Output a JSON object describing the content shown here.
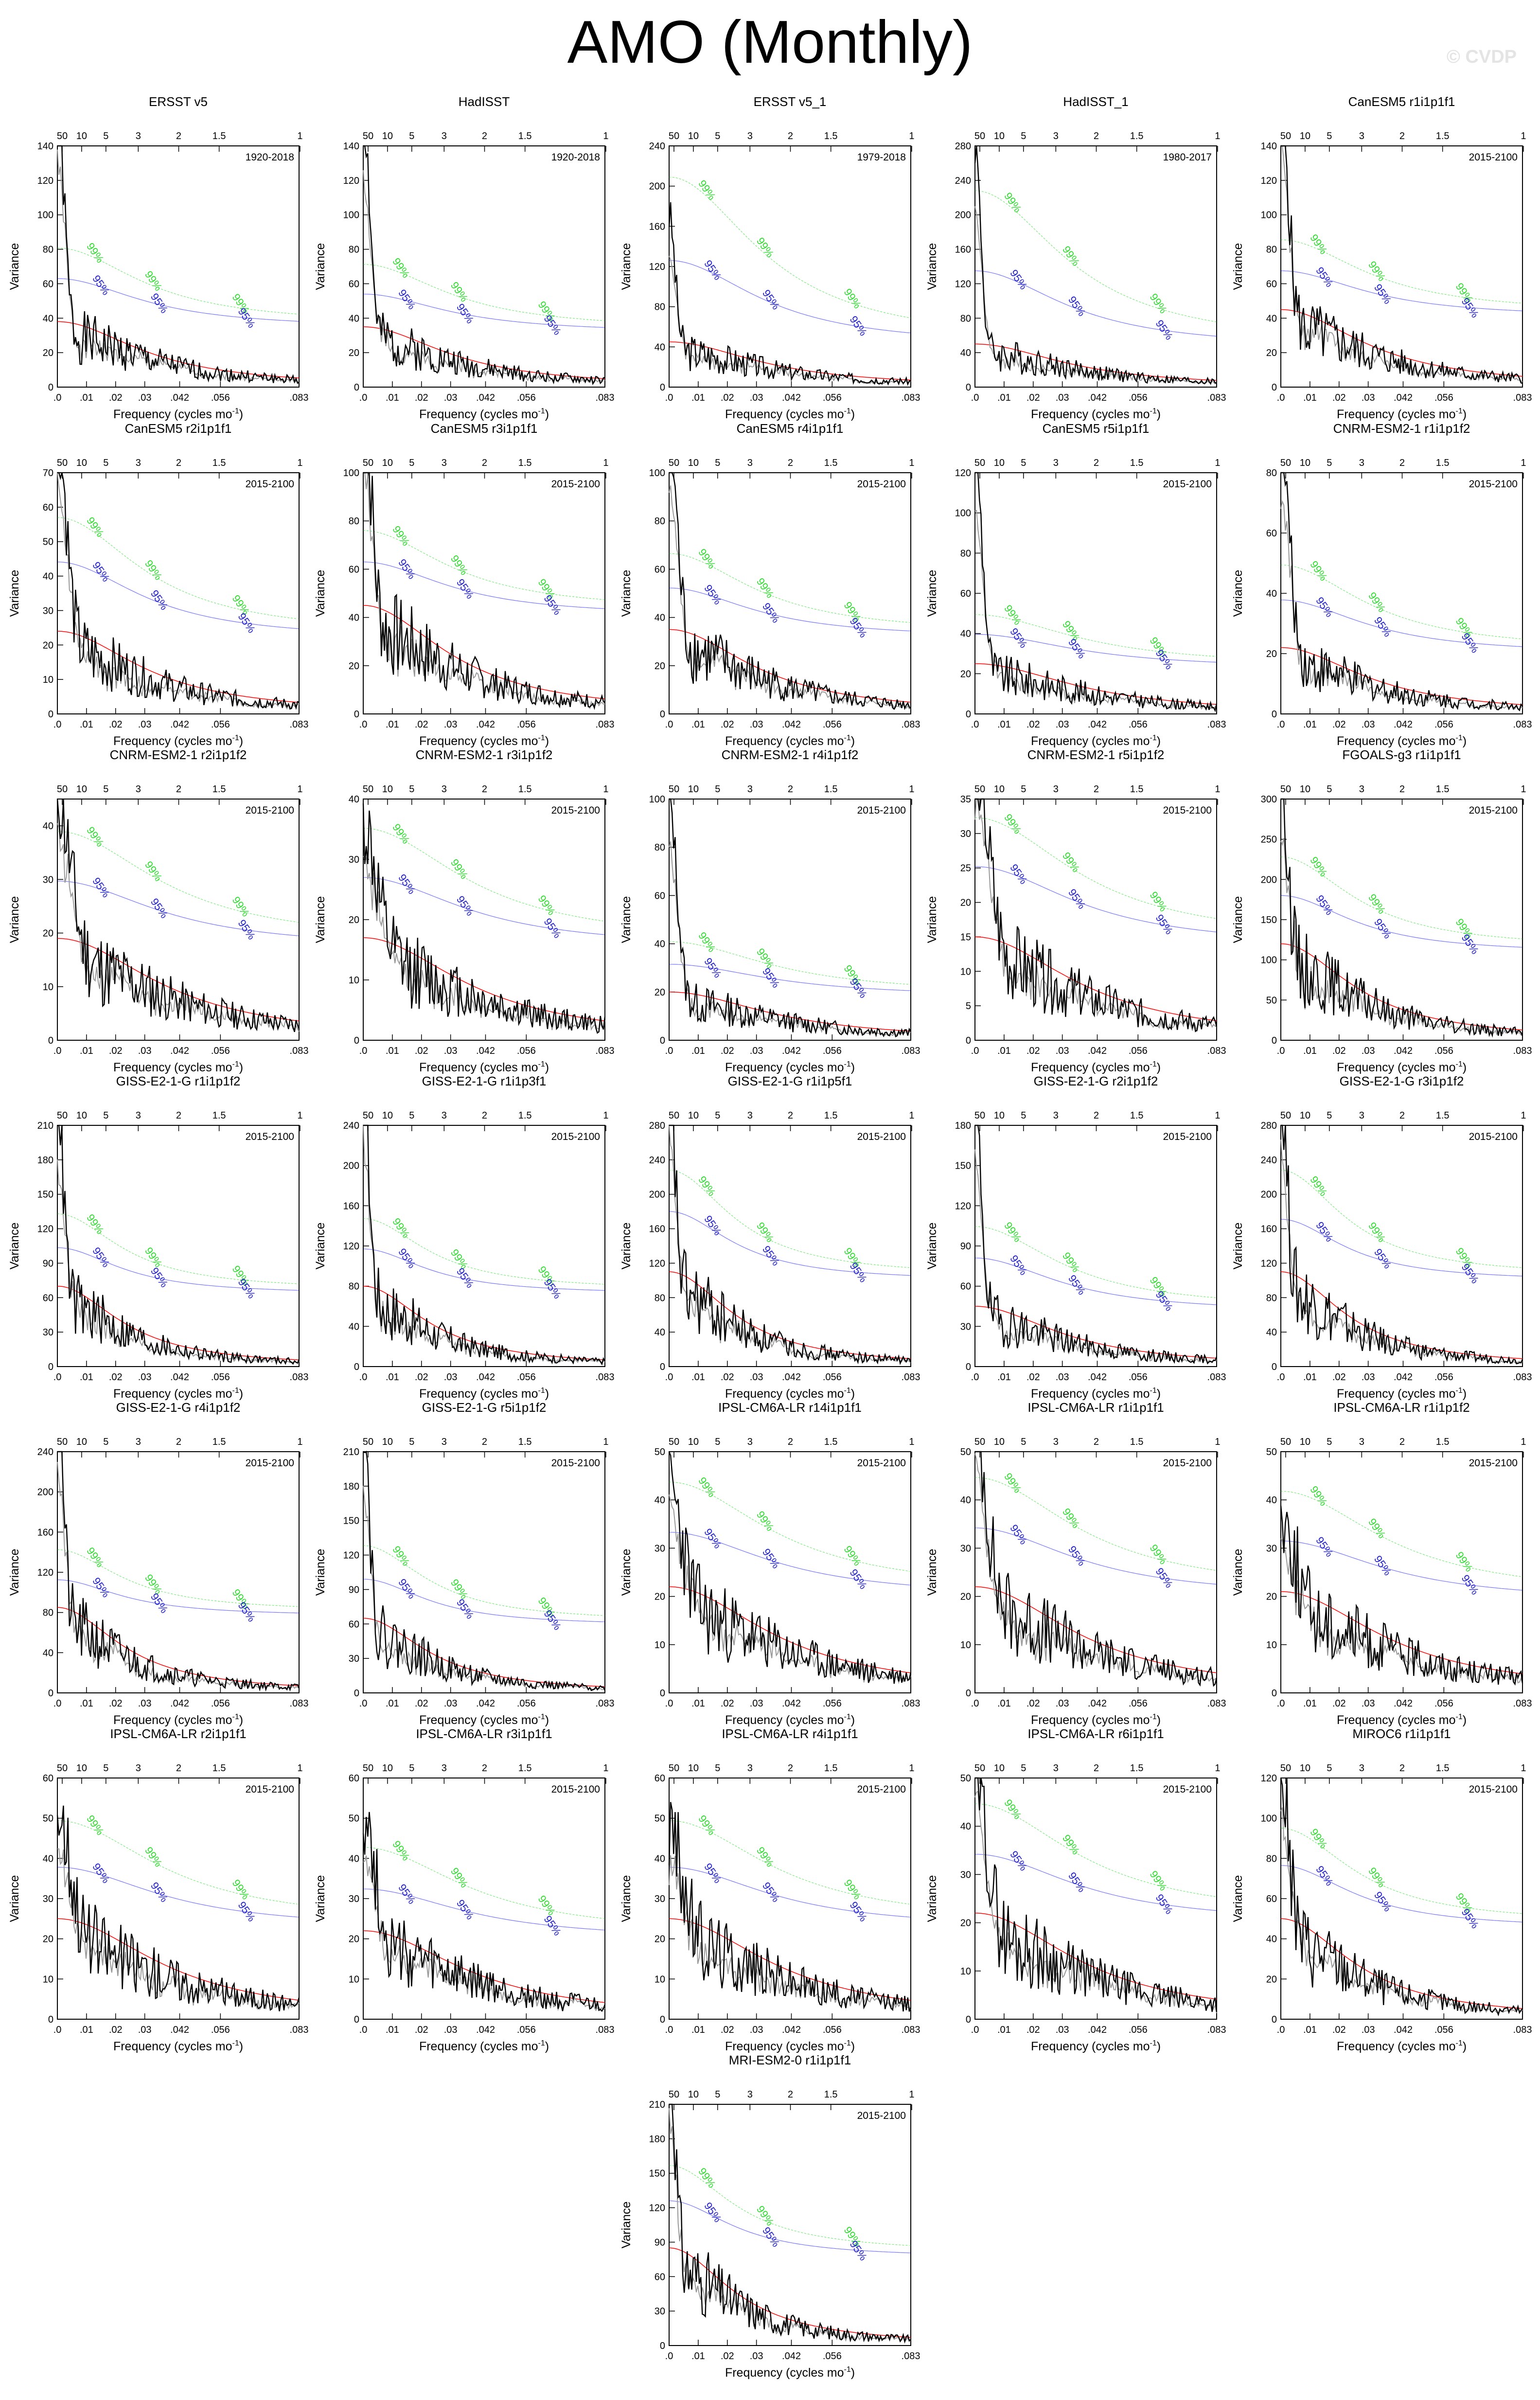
{
  "title": "AMO (Monthly)",
  "watermark": "© CVDP",
  "axis": {
    "xlabel": "Frequency (cycles mo",
    "xlabel_sup": "-1",
    "ylabel": "Variance",
    "x_ticks": [
      ".0",
      ".01",
      ".02",
      ".03",
      ".042",
      ".056",
      ".083"
    ],
    "x_tick_values": [
      0,
      0.01,
      0.02,
      0.03,
      0.042,
      0.056,
      0.083
    ],
    "period_ticks": [
      "50",
      "10",
      "5",
      "3",
      "2",
      "1.5",
      "1"
    ],
    "period_values": [
      50,
      10,
      5,
      3,
      2,
      1.5,
      1
    ],
    "period_unit_in_months": 12,
    "xlim": [
      0,
      0.083
    ],
    "sig_labels": [
      "99%",
      "95%"
    ]
  },
  "colors": {
    "spectrum": "#000000",
    "smooth": "#9a9a9a",
    "red_noise": "#ff0000",
    "sig95": "#0000ff",
    "sig99": "#00dd00"
  },
  "chart_data": [
    {
      "type": "line",
      "panel": "ERSST v5",
      "period": "1920-2018",
      "ylim": [
        0,
        140
      ],
      "yticks": [
        0,
        20,
        40,
        60,
        80,
        100,
        120,
        140
      ],
      "red0": 38,
      "c95": 70,
      "c99": 85,
      "decay": 30,
      "peak": 138,
      "sharp": 0.9,
      "seed": 1
    },
    {
      "type": "line",
      "panel": "HadISST",
      "period": "1920-2018",
      "ylim": [
        0,
        140
      ],
      "yticks": [
        0,
        20,
        40,
        60,
        80,
        100,
        120,
        140
      ],
      "red0": 35,
      "c95": 60,
      "c99": 75,
      "decay": 30,
      "peak": 130,
      "sharp": 0.9,
      "seed": 2
    },
    {
      "type": "line",
      "panel": "ERSST v5_1",
      "period": "1979-2018",
      "ylim": [
        0,
        240
      ],
      "yticks": [
        0,
        40,
        80,
        120,
        160,
        200,
        240
      ],
      "red0": 45,
      "c95": 140,
      "c99": 220,
      "decay": 28,
      "peak": 135,
      "sharp": 0.95,
      "seed": 3
    },
    {
      "type": "line",
      "panel": "HadISST_1",
      "period": "1980-2017",
      "ylim": [
        0,
        280
      ],
      "yticks": [
        0,
        40,
        80,
        120,
        160,
        200,
        240,
        280
      ],
      "red0": 50,
      "c95": 150,
      "c99": 240,
      "decay": 28,
      "peak": 240,
      "sharp": 0.95,
      "seed": 4
    },
    {
      "type": "line",
      "panel": "CanESM5 r1i1p1f1",
      "period": "2015-2100",
      "ylim": [
        0,
        140
      ],
      "yticks": [
        0,
        20,
        40,
        60,
        80,
        100,
        120,
        140
      ],
      "red0": 45,
      "c95": 75,
      "c99": 90,
      "decay": 30,
      "peak": 140,
      "sharp": 0.85,
      "seed": 5
    },
    {
      "type": "line",
      "panel": "CanESM5 r2i1p1f1",
      "period": "2015-2100",
      "ylim": [
        0,
        70
      ],
      "yticks": [
        0,
        10,
        20,
        30,
        40,
        50,
        60,
        70
      ],
      "red0": 24,
      "c95": 49,
      "c99": 60,
      "decay": 30,
      "peak": 63,
      "sharp": 0.7,
      "seed": 6
    },
    {
      "type": "line",
      "panel": "CanESM5 r3i1p1f1",
      "period": "2015-2100",
      "ylim": [
        0,
        100
      ],
      "yticks": [
        0,
        20,
        40,
        60,
        80,
        100
      ],
      "red0": 45,
      "c95": 70,
      "c99": 80,
      "decay": 30,
      "peak": 97,
      "sharp": 0.8,
      "seed": 7
    },
    {
      "type": "line",
      "panel": "CanESM5 r4i1p1f1",
      "period": "2015-2100",
      "ylim": [
        0,
        100
      ],
      "yticks": [
        0,
        20,
        40,
        60,
        80,
        100
      ],
      "red0": 35,
      "c95": 58,
      "c99": 70,
      "decay": 30,
      "peak": 88,
      "sharp": 0.8,
      "seed": 8
    },
    {
      "type": "line",
      "panel": "CanESM5 r5i1p1f1",
      "period": "2015-2100",
      "ylim": [
        0,
        120
      ],
      "yticks": [
        0,
        20,
        40,
        60,
        80,
        100,
        120
      ],
      "red0": 25,
      "c95": 44,
      "c99": 52,
      "decay": 25,
      "peak": 111,
      "sharp": 0.85,
      "seed": 9
    },
    {
      "type": "line",
      "panel": "CNRM-ESM2-1 r1i1p1f2",
      "period": "2015-2100",
      "ylim": [
        0,
        80
      ],
      "yticks": [
        0,
        20,
        40,
        60,
        80
      ],
      "red0": 22,
      "c95": 42,
      "c99": 52,
      "decay": 30,
      "peak": 73,
      "sharp": 0.75,
      "seed": 10
    },
    {
      "type": "line",
      "panel": "CNRM-ESM2-1 r2i1p1f2",
      "period": "2015-2100",
      "ylim": [
        0,
        45
      ],
      "yticks": [
        0,
        10,
        20,
        30,
        40
      ],
      "red0": 19,
      "c95": 33,
      "c99": 41,
      "decay": 25,
      "peak": 30,
      "sharp": 0.4,
      "seed": 11
    },
    {
      "type": "line",
      "panel": "CNRM-ESM2-1 r3i1p1f2",
      "period": "2015-2100",
      "ylim": [
        0,
        40
      ],
      "yticks": [
        0,
        10,
        20,
        30,
        40
      ],
      "red0": 17,
      "c95": 30,
      "c99": 37,
      "decay": 25,
      "peak": 22,
      "sharp": 0.4,
      "seed": 12
    },
    {
      "type": "line",
      "panel": "CNRM-ESM2-1 r4i1p1f2",
      "period": "2015-2100",
      "ylim": [
        0,
        100
      ],
      "yticks": [
        0,
        20,
        40,
        60,
        80,
        100
      ],
      "red0": 20,
      "c95": 35,
      "c99": 43,
      "decay": 25,
      "peak": 84,
      "sharp": 0.8,
      "seed": 13
    },
    {
      "type": "line",
      "panel": "CNRM-ESM2-1 r5i1p1f2",
      "period": "2015-2100",
      "ylim": [
        0,
        35
      ],
      "yticks": [
        0,
        5,
        10,
        15,
        20,
        25,
        30,
        35
      ],
      "red0": 15,
      "c95": 28,
      "c99": 34,
      "decay": 25,
      "peak": 29,
      "sharp": 0.4,
      "seed": 14
    },
    {
      "type": "line",
      "panel": "FGOALS-g3 r1i1p1f1",
      "period": "2015-2100",
      "ylim": [
        0,
        300
      ],
      "yticks": [
        0,
        50,
        100,
        150,
        200,
        250,
        300
      ],
      "red0": 120,
      "c95": 200,
      "c99": 240,
      "decay": 35,
      "peak": 250,
      "sharp": 0.9,
      "seed": 15
    },
    {
      "type": "line",
      "panel": "GISS-E2-1-G r1i1p1f2",
      "period": "2015-2100",
      "ylim": [
        0,
        210
      ],
      "yticks": [
        0,
        30,
        60,
        90,
        120,
        150,
        180,
        210
      ],
      "red0": 70,
      "c95": 115,
      "c99": 140,
      "decay": 40,
      "peak": 180,
      "sharp": 0.95,
      "seed": 16
    },
    {
      "type": "line",
      "panel": "GISS-E2-1-G r1i1p3f1",
      "period": "2015-2100",
      "ylim": [
        0,
        240
      ],
      "yticks": [
        0,
        40,
        80,
        120,
        160,
        200,
        240
      ],
      "red0": 80,
      "c95": 130,
      "c99": 155,
      "decay": 40,
      "peak": 215,
      "sharp": 0.95,
      "seed": 17
    },
    {
      "type": "line",
      "panel": "GISS-E2-1-G r1i1p5f1",
      "period": "2015-2100",
      "ylim": [
        0,
        280
      ],
      "yticks": [
        0,
        40,
        80,
        120,
        160,
        200,
        240,
        280
      ],
      "red0": 110,
      "c95": 200,
      "c99": 240,
      "decay": 40,
      "peak": 240,
      "sharp": 0.95,
      "seed": 18
    },
    {
      "type": "line",
      "panel": "GISS-E2-1-G r2i1p1f2",
      "period": "2015-2100",
      "ylim": [
        0,
        180
      ],
      "yticks": [
        0,
        30,
        60,
        90,
        120,
        150,
        180
      ],
      "red0": 45,
      "c95": 90,
      "c99": 110,
      "decay": 30,
      "peak": 160,
      "sharp": 0.9,
      "seed": 19
    },
    {
      "type": "line",
      "panel": "GISS-E2-1-G r3i1p1f2",
      "period": "2015-2100",
      "ylim": [
        0,
        280
      ],
      "yticks": [
        0,
        40,
        80,
        120,
        160,
        200,
        240,
        280
      ],
      "red0": 110,
      "c95": 190,
      "c99": 240,
      "decay": 40,
      "peak": 240,
      "sharp": 0.95,
      "seed": 20
    },
    {
      "type": "line",
      "panel": "GISS-E2-1-G r4i1p1f2",
      "period": "2015-2100",
      "ylim": [
        0,
        240
      ],
      "yticks": [
        0,
        40,
        80,
        120,
        160,
        200,
        240
      ],
      "red0": 85,
      "c95": 125,
      "c99": 150,
      "decay": 40,
      "peak": 230,
      "sharp": 0.95,
      "seed": 21
    },
    {
      "type": "line",
      "panel": "GISS-E2-1-G r5i1p1f2",
      "period": "2015-2100",
      "ylim": [
        0,
        210
      ],
      "yticks": [
        0,
        30,
        60,
        90,
        120,
        150,
        180,
        210
      ],
      "red0": 65,
      "c95": 110,
      "c99": 135,
      "decay": 40,
      "peak": 190,
      "sharp": 0.95,
      "seed": 22
    },
    {
      "type": "line",
      "panel": "IPSL-CM6A-LR r14i1p1f1",
      "period": "2015-2100",
      "ylim": [
        0,
        50
      ],
      "yticks": [
        0,
        10,
        20,
        30,
        40,
        50
      ],
      "red0": 22,
      "c95": 37,
      "c99": 46,
      "decay": 25,
      "peak": 25,
      "sharp": 0.4,
      "seed": 23
    },
    {
      "type": "line",
      "panel": "IPSL-CM6A-LR r1i1p1f1",
      "period": "2015-2100",
      "ylim": [
        0,
        50
      ],
      "yticks": [
        0,
        10,
        20,
        30,
        40,
        50
      ],
      "red0": 22,
      "c95": 38,
      "c99": 47,
      "decay": 25,
      "peak": 38,
      "sharp": 0.5,
      "seed": 24
    },
    {
      "type": "line",
      "panel": "IPSL-CM6A-LR r1i1p1f2",
      "period": "2015-2100",
      "ylim": [
        0,
        50
      ],
      "yticks": [
        0,
        10,
        20,
        30,
        40,
        50
      ],
      "red0": 21,
      "c95": 35,
      "c99": 44,
      "decay": 25,
      "peak": 20,
      "sharp": 0.35,
      "seed": 25
    },
    {
      "type": "line",
      "panel": "IPSL-CM6A-LR r2i1p1f1",
      "period": "2015-2100",
      "ylim": [
        0,
        60
      ],
      "yticks": [
        0,
        10,
        20,
        30,
        40,
        50,
        60
      ],
      "red0": 25,
      "c95": 42,
      "c99": 52,
      "decay": 25,
      "peak": 32,
      "sharp": 0.4,
      "seed": 26
    },
    {
      "type": "line",
      "panel": "IPSL-CM6A-LR r3i1p1f1",
      "period": "2015-2100",
      "ylim": [
        0,
        60
      ],
      "yticks": [
        0,
        10,
        20,
        30,
        40,
        50,
        60
      ],
      "red0": 22,
      "c95": 36,
      "c99": 45,
      "decay": 25,
      "peak": 33,
      "sharp": 0.5,
      "seed": 27
    },
    {
      "type": "line",
      "panel": "IPSL-CM6A-LR r4i1p1f1",
      "period": "2015-2100",
      "ylim": [
        0,
        60
      ],
      "yticks": [
        0,
        10,
        20,
        30,
        40,
        50,
        60
      ],
      "red0": 25,
      "c95": 42,
      "c99": 52,
      "decay": 25,
      "peak": 27,
      "sharp": 0.4,
      "seed": 28
    },
    {
      "type": "line",
      "panel": "IPSL-CM6A-LR r6i1p1f1",
      "period": "2015-2100",
      "ylim": [
        0,
        50
      ],
      "yticks": [
        0,
        10,
        20,
        30,
        40,
        50
      ],
      "red0": 22,
      "c95": 38,
      "c99": 47,
      "decay": 25,
      "peak": 33,
      "sharp": 0.5,
      "seed": 29
    },
    {
      "type": "line",
      "panel": "MIROC6 r1i1p1f1",
      "period": "2015-2100",
      "ylim": [
        0,
        120
      ],
      "yticks": [
        0,
        20,
        40,
        60,
        80,
        100,
        120
      ],
      "red0": 50,
      "c95": 85,
      "c99": 100,
      "decay": 35,
      "peak": 82,
      "sharp": 0.8,
      "seed": 30
    },
    {
      "type": "line",
      "panel": "MRI-ESM2-0 r1i1p1f1",
      "period": "2015-2100",
      "ylim": [
        0,
        210
      ],
      "yticks": [
        0,
        30,
        60,
        90,
        120,
        150,
        180,
        210
      ],
      "red0": 85,
      "c95": 140,
      "c99": 165,
      "decay": 40,
      "peak": 195,
      "sharp": 0.95,
      "seed": 31
    }
  ]
}
